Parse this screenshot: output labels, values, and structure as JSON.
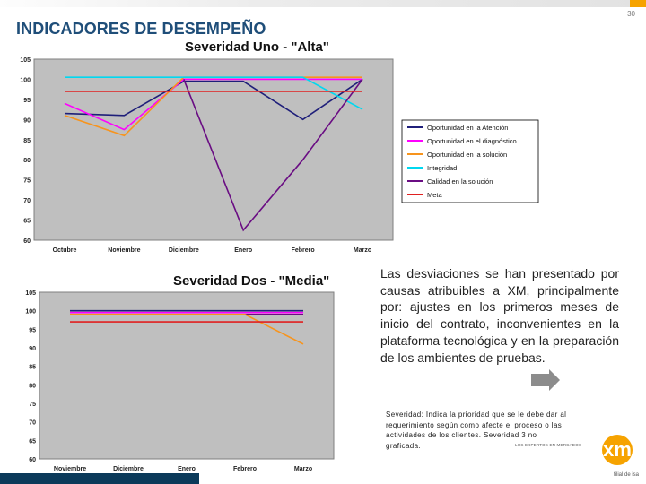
{
  "slide": {
    "title": "INDICADORES DE DESEMPEÑO",
    "page_number": "30",
    "body_text": "Las desviaciones se han presentado por causas atribuibles a XM, principalmente por: ajustes en los primeros meses de inicio del contrato, inconvenientes en la plataforma tecnológica y en la preparación de los ambientes de pruebas.",
    "footnote": "Severidad: Indica la prioridad que se le debe dar al requerimiento según como afecte el proceso o las actividades de los clientes. Severidad 3 no graficada.",
    "logo_tagline": "LOS EXPERTOS EN MERCADOS",
    "logo_sub": "filial de isa"
  },
  "colors": {
    "title": "#1f4e79",
    "plot_bg": "#bfbfbf",
    "bottom_bar": "#0b3a5a",
    "logo_accent": "#f6a300"
  },
  "chart_data": [
    {
      "type": "line",
      "title": "Severidad Uno - \"Alta\"",
      "categories": [
        "Octubre",
        "Noviembre",
        "Diciembre",
        "Enero",
        "Febrero",
        "Marzo"
      ],
      "ylim": [
        60,
        105
      ],
      "yticks": [
        60,
        65,
        70,
        75,
        80,
        85,
        90,
        95,
        100,
        105
      ],
      "grid": false,
      "legend_position": "right",
      "series": [
        {
          "name": "Oportunidad en la Atención",
          "color": "#1f1f7a",
          "values": [
            91.5,
            91,
            99.5,
            99.5,
            90,
            100
          ]
        },
        {
          "name": "Oportunidad en el diagnóstico",
          "color": "#ff00ff",
          "values": [
            94,
            87.5,
            100,
            100,
            100,
            100
          ]
        },
        {
          "name": "Oportunidad en la solución",
          "color": "#f7941d",
          "values": [
            91,
            86,
            100.5,
            100.5,
            100.5,
            100.5
          ]
        },
        {
          "name": "Integridad",
          "color": "#00d8f0",
          "values": [
            100.5,
            100.5,
            100.5,
            100.5,
            100.5,
            92.5
          ]
        },
        {
          "name": "Calidad en la solución",
          "color": "#6a0d83",
          "values": [
            null,
            null,
            100,
            62.5,
            80,
            100
          ]
        },
        {
          "name": "Meta",
          "color": "#e02020",
          "values": [
            97,
            97,
            97,
            97,
            97,
            97
          ]
        }
      ]
    },
    {
      "type": "line",
      "title": "Severidad Dos - \"Media\"",
      "categories": [
        "Noviembre",
        "Diciembre",
        "Enero",
        "Febrero",
        "Marzo"
      ],
      "ylim": [
        60,
        105
      ],
      "yticks": [
        60,
        65,
        70,
        75,
        80,
        85,
        90,
        95,
        100,
        105
      ],
      "grid": false,
      "series": [
        {
          "color": "#1f1f7a",
          "values": [
            100,
            100,
            100,
            100,
            100
          ]
        },
        {
          "color": "#ff00ff",
          "values": [
            99.5,
            99.5,
            99.5,
            99.5,
            99.5
          ]
        },
        {
          "color": "#6a0d83",
          "values": [
            99,
            99,
            99,
            99,
            99
          ]
        },
        {
          "color": "#f7941d",
          "values": [
            99,
            99,
            99,
            99,
            91
          ]
        },
        {
          "color": "#e02020",
          "values": [
            97,
            97,
            97,
            97,
            97
          ]
        }
      ]
    }
  ]
}
